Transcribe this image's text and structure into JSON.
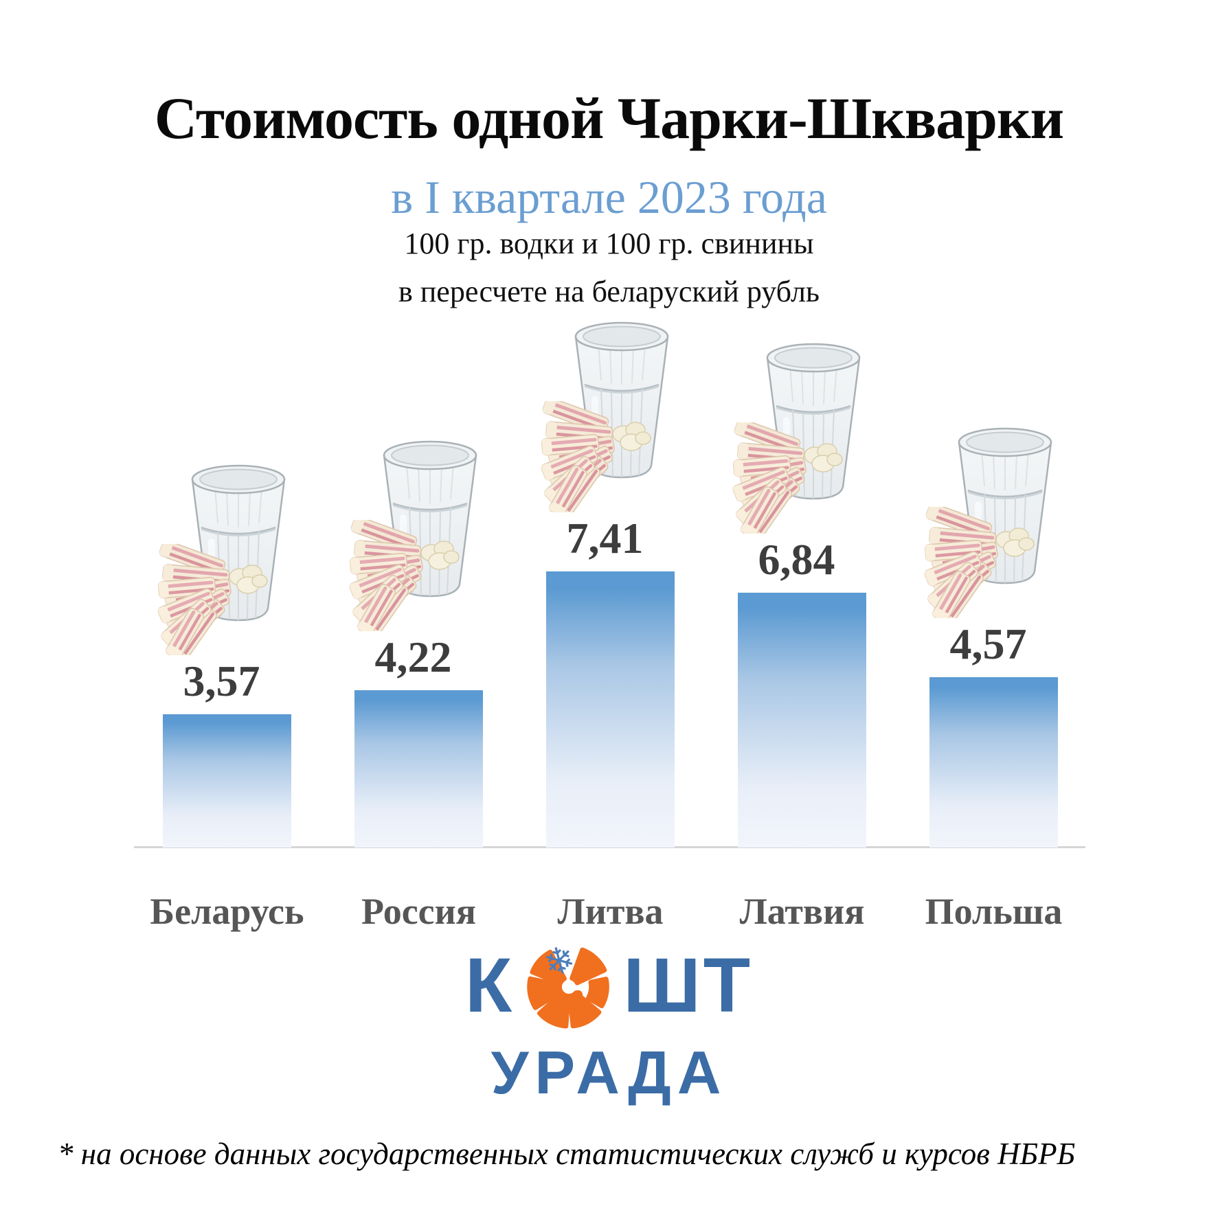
{
  "title": "Стоимость одной Чарки-Шкварки",
  "subtitle": "в I квартале 2023 года",
  "description": {
    "line1": "100 гр. водки и 100 гр. свинины",
    "line2": "в пересчете на беларуский рубль"
  },
  "chart_data": {
    "type": "bar",
    "categories": [
      "Беларусь",
      "Россия",
      "Литва",
      "Латвия",
      "Польша"
    ],
    "values": [
      3.57,
      4.22,
      7.41,
      6.84,
      4.57
    ],
    "value_labels": [
      "3,57",
      "4,22",
      "7,41",
      "6,84",
      "4,57"
    ],
    "title": "Стоимость одной Чарки-Шкварки в I квартале 2023 года",
    "xlabel": "",
    "ylabel": "",
    "unit": "беларуский рубль",
    "ylim": [
      0,
      8
    ],
    "grid": false,
    "legend_position": "none",
    "bar_gradient_top": "#5b9ad2",
    "bar_gradient_bottom": "#f2f5fb",
    "value_label_color": "#3d3d3d",
    "category_label_color": "#565656",
    "icons_per_bar": [
      "vodka-glass",
      "salo-plate"
    ]
  },
  "logo": {
    "word_start": "К",
    "word_end": "ШТ",
    "word_bottom": "УРАДА",
    "snowflake": "❄",
    "blue": "#3b6ca6",
    "orange": "#f0701f"
  },
  "footnote": "* на основе данных государственных статистических служб и курсов НБРБ",
  "colors": {
    "title": "#0a0a0a",
    "subtitle": "#6b9ed1",
    "axis_line": "#d6d6d6",
    "background": "#ffffff"
  }
}
